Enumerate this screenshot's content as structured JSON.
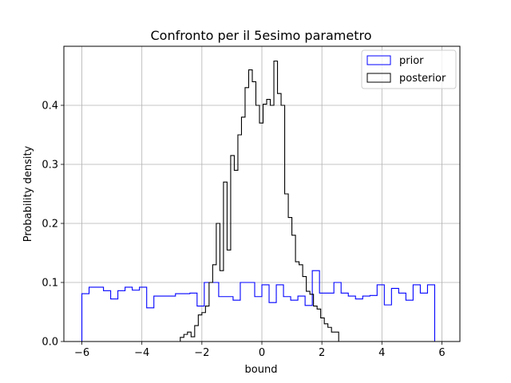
{
  "chart_data": {
    "type": "histogram",
    "title": "Confronto per il 5esimo parametro",
    "xlabel": "bound",
    "ylabel": "Probability density",
    "xlim": [
      -6.6,
      6.6
    ],
    "ylim": [
      0,
      0.5
    ],
    "xticks": [
      -6,
      -4,
      -2,
      0,
      2,
      4,
      6
    ],
    "xtick_labels": [
      "−6",
      "−4",
      "−2",
      "0",
      "2",
      "4",
      "6"
    ],
    "yticks": [
      0,
      0.1,
      0.2,
      0.3,
      0.4
    ],
    "ytick_labels": [
      "0.0",
      "0.1",
      "0.2",
      "0.3",
      "0.4"
    ],
    "grid": true,
    "legend_position": "top-right",
    "series": [
      {
        "name": "prior",
        "color": "#0000ff",
        "edges": [
          -6.0,
          -5.76,
          -5.52,
          -5.28,
          -5.04,
          -4.8,
          -4.56,
          -4.32,
          -4.08,
          -3.84,
          -3.6,
          -3.36,
          -3.12,
          -2.88,
          -2.64,
          -2.4,
          -2.16,
          -1.92,
          -1.68,
          -1.44,
          -1.2,
          -0.96,
          -0.72,
          -0.48,
          -0.24,
          0.0,
          0.24,
          0.48,
          0.72,
          0.96,
          1.2,
          1.44,
          1.68,
          1.92,
          2.16,
          2.4,
          2.64,
          2.88,
          3.12,
          3.36,
          3.6,
          3.84,
          4.08,
          4.32,
          4.56,
          4.8,
          5.04,
          5.28,
          5.52,
          5.76,
          6.0
        ],
        "values": [
          0.081,
          0.092,
          0.092,
          0.086,
          0.072,
          0.086,
          0.092,
          0.087,
          0.092,
          0.057,
          0.077,
          0.077,
          0.077,
          0.081,
          0.081,
          0.082,
          0.06,
          0.1,
          0.1,
          0.076,
          0.076,
          0.07,
          0.1,
          0.1,
          0.076,
          0.096,
          0.066,
          0.096,
          0.076,
          0.07,
          0.077,
          0.061,
          0.12,
          0.082,
          0.082,
          0.1,
          0.082,
          0.077,
          0.072,
          0.077,
          0.078,
          0.096,
          0.062,
          0.09,
          0.082,
          0.07,
          0.096,
          0.082,
          0.096,
          0.0
        ]
      },
      {
        "name": "posterior",
        "color": "#000000",
        "edges": [
          -2.72,
          -2.6,
          -2.48,
          -2.36,
          -2.24,
          -2.12,
          -2.0,
          -1.88,
          -1.76,
          -1.64,
          -1.52,
          -1.4,
          -1.28,
          -1.16,
          -1.04,
          -0.92,
          -0.8,
          -0.68,
          -0.56,
          -0.44,
          -0.32,
          -0.2,
          -0.08,
          0.04,
          0.16,
          0.28,
          0.4,
          0.52,
          0.64,
          0.76,
          0.88,
          1.0,
          1.12,
          1.24,
          1.36,
          1.48,
          1.6,
          1.72,
          1.84,
          1.96,
          2.08,
          2.2,
          2.32,
          2.44,
          2.56,
          2.68
        ],
        "values": [
          0.007,
          0.012,
          0.016,
          0.008,
          0.027,
          0.045,
          0.049,
          0.06,
          0.1,
          0.13,
          0.2,
          0.12,
          0.27,
          0.155,
          0.315,
          0.29,
          0.35,
          0.38,
          0.43,
          0.46,
          0.44,
          0.4,
          0.37,
          0.402,
          0.41,
          0.4,
          0.475,
          0.42,
          0.4,
          0.25,
          0.21,
          0.18,
          0.135,
          0.13,
          0.11,
          0.085,
          0.08,
          0.06,
          0.055,
          0.04,
          0.03,
          0.024,
          0.016,
          0.016,
          0.0
        ]
      }
    ]
  }
}
